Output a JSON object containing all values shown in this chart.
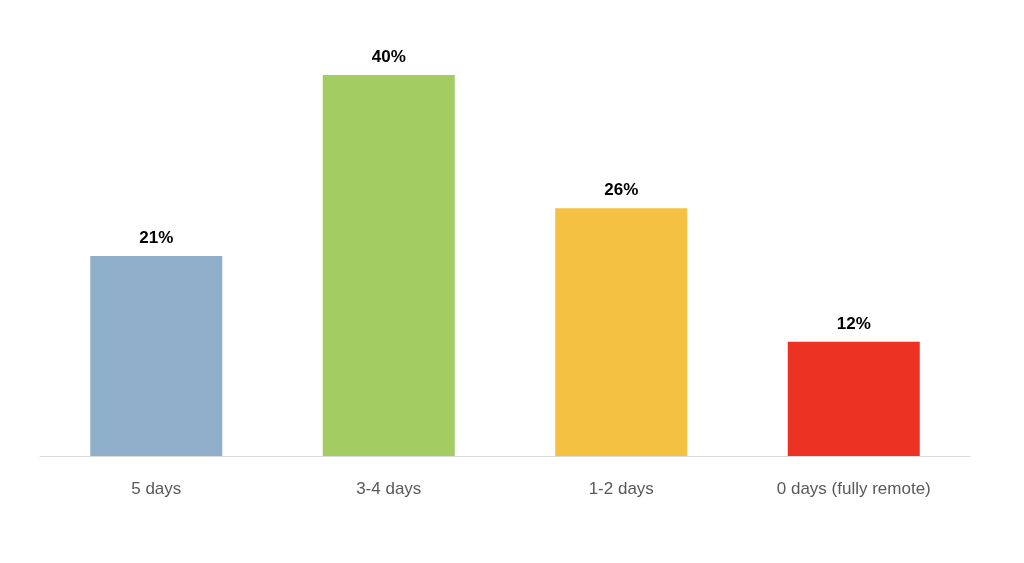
{
  "chart_data": {
    "type": "bar",
    "categories": [
      "5 days",
      "3-4 days",
      "1-2 days",
      "0 days (fully remote)"
    ],
    "values": [
      21,
      40,
      26,
      12
    ],
    "colors": [
      "#8faec9",
      "#a3cc63",
      "#f5c143",
      "#ec3223"
    ],
    "value_labels": [
      "21%",
      "40%",
      "26%",
      "12%"
    ],
    "tick_labels": "x",
    "grid": false
  }
}
